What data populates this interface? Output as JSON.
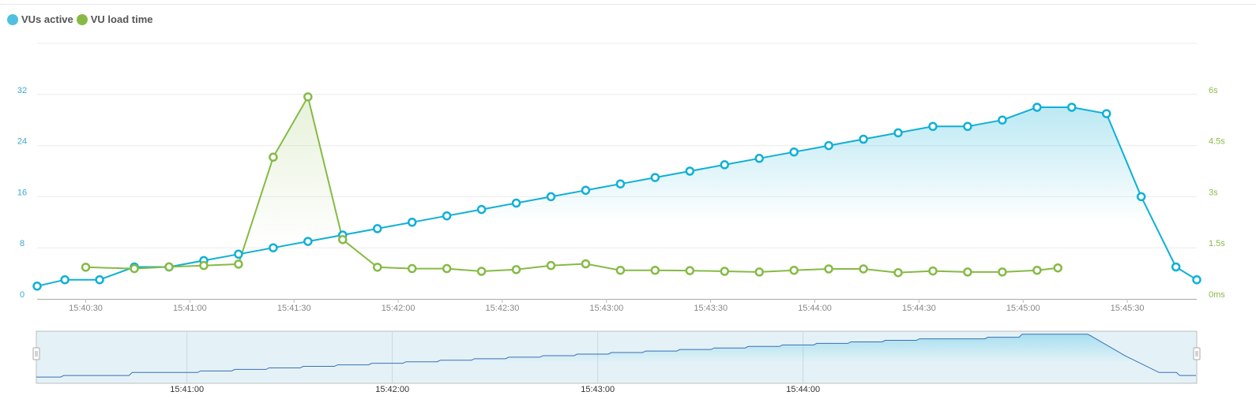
{
  "colors": {
    "vus": "#0fb0d6",
    "load": "#86ba45",
    "navigator_line": "#3a6fb5",
    "grid": "#ececec",
    "x_label": "#888888"
  },
  "legend": [
    {
      "label": "VUs active",
      "color": "#4fc0e0"
    },
    {
      "label": "VU load time",
      "color": "#86ba45"
    }
  ],
  "chart_data": {
    "type": "line",
    "x_range": [
      "15:40:16",
      "15:45:50"
    ],
    "x_ticks": [
      "15:40:30",
      "15:41:00",
      "15:41:30",
      "15:42:00",
      "15:42:30",
      "15:43:00",
      "15:43:30",
      "15:44:00",
      "15:44:30",
      "15:45:00",
      "15:45:30"
    ],
    "y_left": {
      "range": [
        0,
        40
      ],
      "ticks": [
        0,
        8,
        16,
        24,
        32
      ],
      "tick_labels": [
        "0",
        "8",
        "16",
        "24",
        "32"
      ]
    },
    "y_right": {
      "range_s": [
        0,
        7.5
      ],
      "ticks_s": [
        0,
        1.5,
        3,
        4.5,
        6
      ],
      "tick_labels": [
        "0ms",
        "1.5s",
        "3s",
        "4.5s",
        "6s"
      ]
    },
    "grid": true,
    "legend_placement": "top-left",
    "series": [
      {
        "name": "VUs active",
        "axis": "left",
        "area": true,
        "x": [
          "15:40:16",
          "15:40:24",
          "15:40:34",
          "15:40:44",
          "15:40:54",
          "15:41:04",
          "15:41:14",
          "15:41:24",
          "15:41:34",
          "15:41:44",
          "15:41:54",
          "15:42:04",
          "15:42:14",
          "15:42:24",
          "15:42:34",
          "15:42:44",
          "15:42:54",
          "15:43:04",
          "15:43:14",
          "15:43:24",
          "15:43:34",
          "15:43:44",
          "15:43:54",
          "15:44:04",
          "15:44:14",
          "15:44:24",
          "15:44:34",
          "15:44:44",
          "15:44:54",
          "15:45:04",
          "15:45:14",
          "15:45:24",
          "15:45:34",
          "15:45:44",
          "15:45:50"
        ],
        "values": [
          2,
          3,
          3,
          5,
          5,
          6,
          7,
          8,
          9,
          10,
          11,
          12,
          13,
          14,
          15,
          16,
          17,
          18,
          19,
          20,
          21,
          22,
          23,
          24,
          25,
          26,
          27,
          27,
          28,
          30,
          30,
          29,
          16,
          5,
          3
        ]
      },
      {
        "name": "VU load time",
        "axis": "right",
        "unit": "s",
        "area": true,
        "x": [
          "15:40:30",
          "15:40:44",
          "15:40:54",
          "15:41:04",
          "15:41:14",
          "15:41:24",
          "15:41:34",
          "15:41:44",
          "15:41:54",
          "15:42:04",
          "15:42:14",
          "15:42:24",
          "15:42:34",
          "15:42:44",
          "15:42:54",
          "15:43:04",
          "15:43:14",
          "15:43:24",
          "15:43:34",
          "15:43:44",
          "15:43:54",
          "15:44:04",
          "15:44:14",
          "15:44:24",
          "15:44:34",
          "15:44:44",
          "15:44:54",
          "15:45:04",
          "15:45:10"
        ],
        "values": [
          0.93,
          0.89,
          0.94,
          0.98,
          1.02,
          4.16,
          5.93,
          1.74,
          0.93,
          0.89,
          0.89,
          0.81,
          0.86,
          0.98,
          1.03,
          0.84,
          0.84,
          0.83,
          0.81,
          0.79,
          0.84,
          0.88,
          0.88,
          0.77,
          0.82,
          0.79,
          0.79,
          0.84,
          0.91
        ]
      }
    ],
    "navigator": {
      "x_range": [
        "15:40:16",
        "15:45:55"
      ],
      "x_ticks": [
        "15:41:00",
        "15:42:00",
        "15:43:00",
        "15:44:00"
      ]
    }
  }
}
